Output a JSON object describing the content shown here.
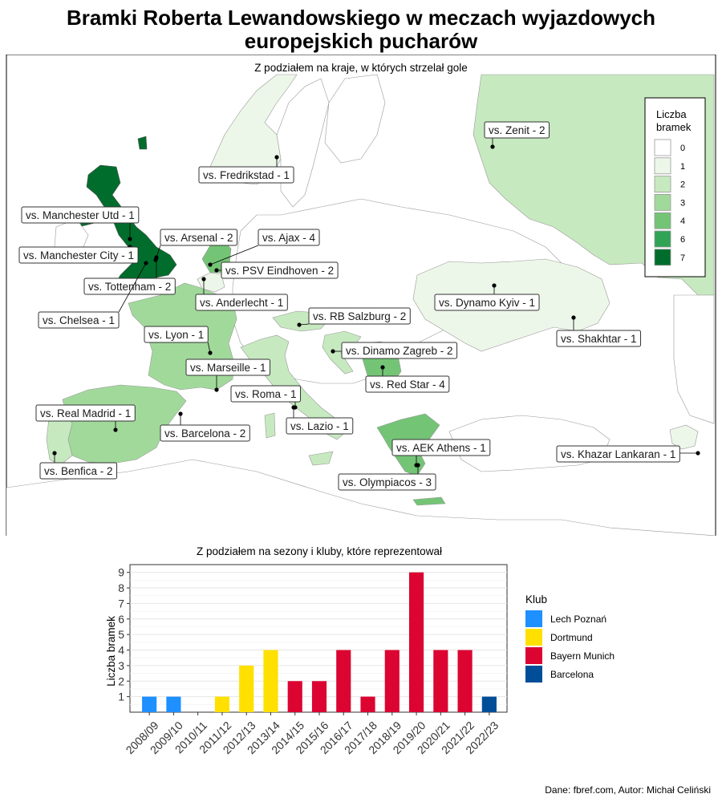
{
  "title_line1": "Bramki Roberta Lewandowskiego w meczach wyjazdowych",
  "title_line2": "europejskich pucharów",
  "map": {
    "subtitle": "Z podziałem na kraje, w których strzelał gole",
    "legend_title_line1": "Liczba",
    "legend_title_line2": "bramek",
    "legend_items": [
      {
        "label": "0",
        "color": "#ffffff"
      },
      {
        "label": "1",
        "color": "#edf7e9"
      },
      {
        "label": "2",
        "color": "#c7e9c0"
      },
      {
        "label": "3",
        "color": "#a1d99b"
      },
      {
        "label": "4",
        "color": "#74c476"
      },
      {
        "label": "6",
        "color": "#31a354"
      },
      {
        "label": "7",
        "color": "#006d2c"
      }
    ],
    "labels": [
      "vs. Zenit - 2",
      "vs. Fredrikstad - 1",
      "vs. Manchester Utd - 1",
      "vs. Arsenal - 2",
      "vs. Ajax - 4",
      "vs. Manchester City - 1",
      "vs. PSV Eindhoven - 2",
      "vs. Tottenham - 2",
      "vs. Anderlecht - 1",
      "vs. Dynamo Kyiv - 1",
      "vs. Chelsea - 1",
      "vs. RB Salzburg - 2",
      "vs. Shakhtar - 1",
      "vs. Lyon - 1",
      "vs. Dinamo Zagreb - 2",
      "vs. Marseille - 1",
      "vs. Red Star - 4",
      "vs. Roma - 1",
      "vs. Real Madrid - 1",
      "vs. Barcelona - 2",
      "vs. Lazio - 1",
      "vs. AEK Athens - 1",
      "vs. Khazar Lankaran - 1",
      "vs. Benfica - 2",
      "vs. Olympiacos - 3"
    ]
  },
  "chart_data": {
    "type": "bar",
    "title": "Z podziałem na sezony i kluby, które reprezentował",
    "xlabel": "",
    "ylabel": "Liczba bramek",
    "ylim": [
      0,
      9.5
    ],
    "yticks": [
      1,
      2,
      3,
      4,
      5,
      6,
      7,
      8,
      9
    ],
    "categories": [
      "2008/09",
      "2009/10",
      "2010/11",
      "2011/12",
      "2012/13",
      "2013/14",
      "2014/15",
      "2015/16",
      "2016/17",
      "2017/18",
      "2018/19",
      "2019/20",
      "2020/21",
      "2021/22",
      "2022/23"
    ],
    "values": [
      1,
      1,
      0,
      1,
      3,
      4,
      2,
      2,
      4,
      1,
      4,
      9,
      4,
      4,
      1
    ],
    "clubs": [
      "Lech Poznań",
      "Lech Poznań",
      "Dortmund",
      "Dortmund",
      "Dortmund",
      "Dortmund",
      "Bayern Munich",
      "Bayern Munich",
      "Bayern Munich",
      "Bayern Munich",
      "Bayern Munich",
      "Bayern Munich",
      "Bayern Munich",
      "Bayern Munich",
      "Barcelona"
    ],
    "legend_title": "Klub",
    "legend_placement": "right",
    "legend": [
      {
        "name": "Lech Poznań",
        "color": "#1e90ff"
      },
      {
        "name": "Dortmund",
        "color": "#ffe000"
      },
      {
        "name": "Bayern Munich",
        "color": "#dc0532"
      },
      {
        "name": "Barcelona",
        "color": "#004d98"
      }
    ],
    "grid": true
  },
  "credit": "Dane: fbref.com, Autor: Michał Celiński"
}
